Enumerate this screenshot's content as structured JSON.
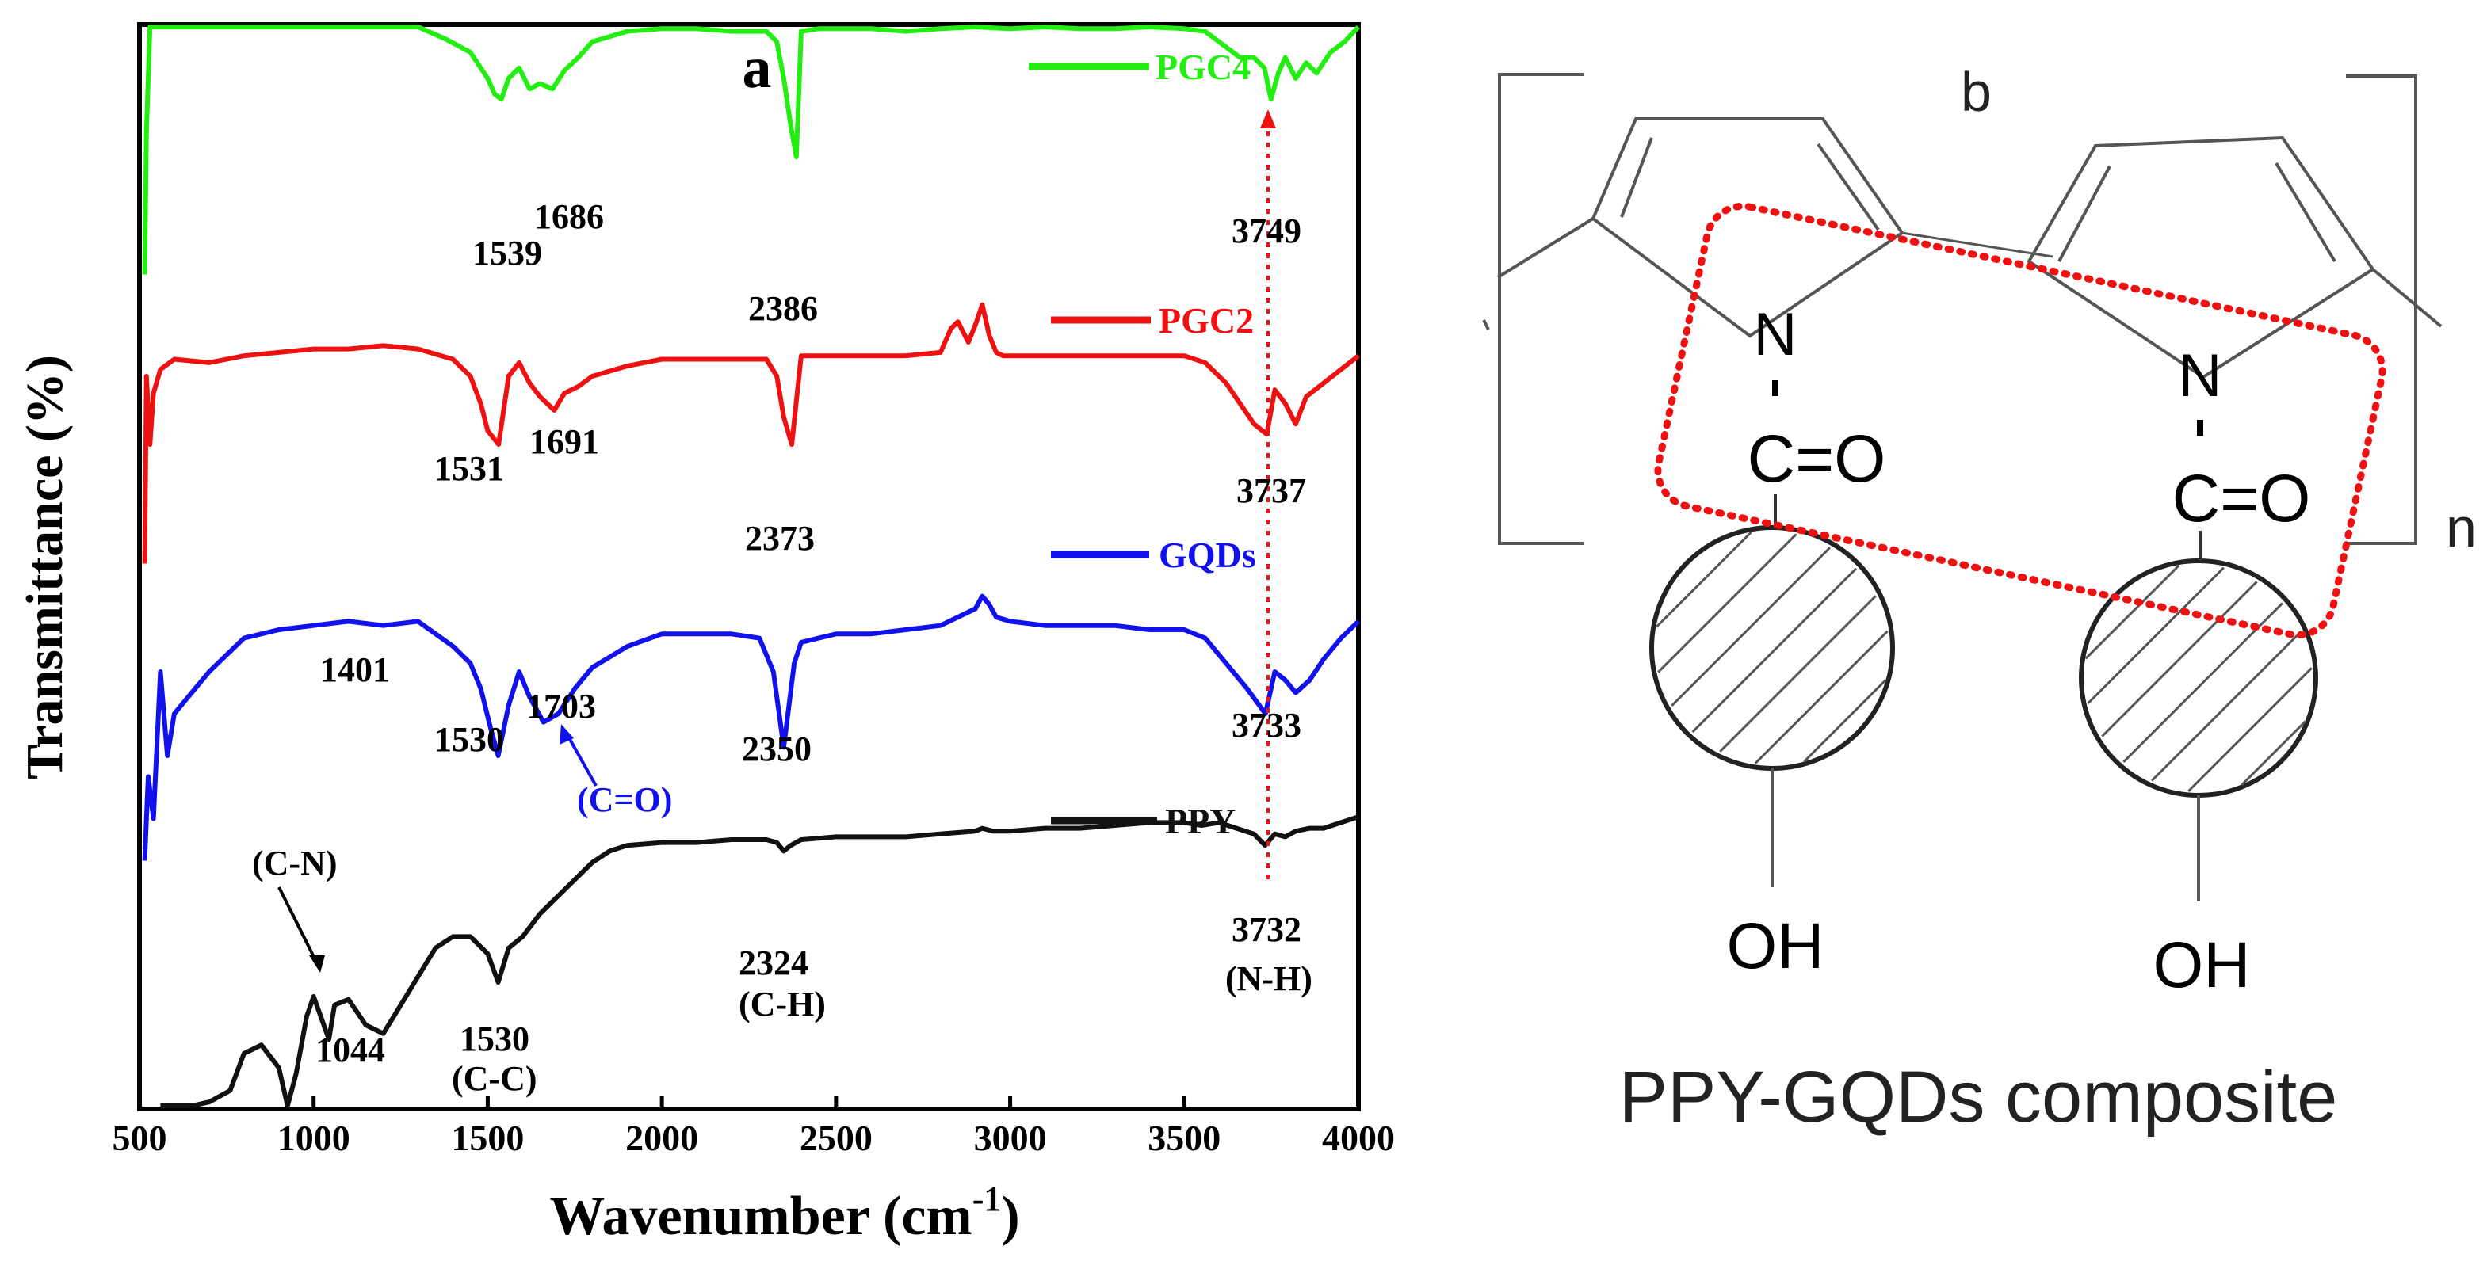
{
  "panel_a": {
    "label": "a",
    "chart_data": {
      "type": "line",
      "title": "",
      "xlabel": "Wavenumber (cm",
      "xlabel_sup": "-1",
      "xlabel_close": ")",
      "ylabel": "Transmittance (%)",
      "xlim": [
        500,
        4000
      ],
      "xticks": [
        500,
        1000,
        1500,
        2000,
        2500,
        3000,
        3500,
        4000
      ],
      "yticks_shown": false,
      "series": [
        {
          "name": "PGC4",
          "color": "#22ee11",
          "x": [
            515,
            520,
            530,
            540,
            560,
            600,
            650,
            700,
            800,
            900,
            1000,
            1100,
            1200,
            1300,
            1380,
            1450,
            1500,
            1520,
            1539,
            1560,
            1590,
            1620,
            1650,
            1686,
            1720,
            1760,
            1800,
            1900,
            2000,
            2100,
            2200,
            2300,
            2330,
            2350,
            2370,
            2386,
            2400,
            2450,
            2500,
            2600,
            2700,
            2800,
            2900,
            3000,
            3100,
            3200,
            3300,
            3400,
            3500,
            3560,
            3620,
            3660,
            3700,
            3730,
            3749,
            3770,
            3790,
            3820,
            3850,
            3880,
            3920,
            3960,
            4000
          ],
          "values": [
            -5,
            50,
            100,
            92,
            95,
            92,
            90,
            92,
            93,
            91,
            90,
            91,
            90,
            90,
            85,
            80,
            70,
            64,
            62,
            70,
            74,
            66,
            68,
            66,
            73,
            78,
            84,
            88,
            89,
            89,
            88,
            88,
            84,
            70,
            52,
            40,
            88,
            89,
            89,
            89,
            88,
            89,
            90,
            89,
            90,
            89,
            89,
            90,
            89,
            88,
            82,
            78,
            78,
            74,
            62,
            72,
            78,
            70,
            76,
            72,
            80,
            84,
            90
          ]
        },
        {
          "name": "PGC2",
          "color": "#ee1111",
          "x": [
            515,
            520,
            530,
            540,
            560,
            600,
            700,
            800,
            900,
            1000,
            1100,
            1200,
            1300,
            1400,
            1450,
            1480,
            1500,
            1531,
            1560,
            1590,
            1620,
            1650,
            1691,
            1720,
            1760,
            1800,
            1900,
            2000,
            2100,
            2200,
            2300,
            2330,
            2350,
            2373,
            2400,
            2450,
            2500,
            2600,
            2700,
            2800,
            2830,
            2850,
            2880,
            2900,
            2920,
            2940,
            2960,
            2980,
            3000,
            3100,
            3200,
            3300,
            3400,
            3500,
            3560,
            3620,
            3660,
            3700,
            3737,
            3760,
            3790,
            3820,
            3850,
            3900,
            3950,
            4000
          ],
          "values": [
            -5,
            50,
            30,
            45,
            52,
            55,
            54,
            56,
            57,
            58,
            58,
            59,
            58,
            55,
            50,
            42,
            34,
            30,
            50,
            54,
            48,
            44,
            40,
            45,
            47,
            50,
            53,
            55,
            55,
            55,
            55,
            50,
            38,
            30,
            56,
            56,
            56,
            56,
            56,
            57,
            64,
            66,
            60,
            65,
            71,
            62,
            57,
            56,
            56,
            56,
            56,
            56,
            56,
            56,
            54,
            48,
            42,
            36,
            33,
            46,
            42,
            36,
            44,
            48,
            52,
            56
          ]
        },
        {
          "name": "GQDs",
          "color": "#1111ee",
          "x": [
            515,
            525,
            540,
            560,
            580,
            600,
            650,
            700,
            800,
            900,
            1000,
            1100,
            1200,
            1300,
            1401,
            1450,
            1480,
            1510,
            1530,
            1560,
            1590,
            1620,
            1660,
            1703,
            1750,
            1800,
            1900,
            2000,
            2100,
            2200,
            2280,
            2320,
            2350,
            2380,
            2400,
            2450,
            2500,
            2600,
            2700,
            2800,
            2900,
            2920,
            2940,
            2960,
            3000,
            3100,
            3200,
            3300,
            3400,
            3500,
            3560,
            3620,
            3680,
            3733,
            3760,
            3790,
            3820,
            3860,
            3900,
            3950,
            4000
          ],
          "values": [
            -5,
            15,
            5,
            40,
            20,
            30,
            35,
            40,
            48,
            50,
            51,
            52,
            51,
            52,
            46,
            42,
            36,
            26,
            20,
            32,
            40,
            34,
            28,
            30,
            36,
            41,
            46,
            49,
            49,
            49,
            48,
            40,
            22,
            42,
            47,
            48,
            49,
            49,
            50,
            51,
            55,
            58,
            56,
            53,
            52,
            51,
            51,
            51,
            50,
            50,
            48,
            42,
            36,
            30,
            40,
            38,
            35,
            38,
            43,
            48,
            52
          ]
        },
        {
          "name": "PPY",
          "color": "#111111",
          "x": [
            560,
            600,
            650,
            700,
            760,
            800,
            850,
            900,
            925,
            950,
            980,
            1000,
            1044,
            1060,
            1100,
            1150,
            1200,
            1250,
            1300,
            1350,
            1400,
            1450,
            1500,
            1530,
            1560,
            1600,
            1650,
            1700,
            1750,
            1800,
            1850,
            1900,
            2000,
            2100,
            2200,
            2300,
            2330,
            2350,
            2370,
            2400,
            2500,
            2600,
            2700,
            2800,
            2900,
            2920,
            2950,
            3000,
            3100,
            3200,
            3300,
            3400,
            3500,
            3550,
            3600,
            3650,
            3700,
            3732,
            3760,
            3790,
            3820,
            3860,
            3900,
            3950,
            4000
          ],
          "values": [
            -50,
            -43,
            -40,
            -32,
            -28,
            -15,
            -12,
            -20,
            -34,
            -22,
            -2,
            5,
            -10,
            2,
            4,
            -5,
            -8,
            2,
            12,
            22,
            26,
            26,
            20,
            10,
            22,
            26,
            34,
            40,
            46,
            52,
            56,
            58,
            59,
            59,
            60,
            60,
            59,
            56,
            58,
            60,
            61,
            61,
            61,
            62,
            63,
            64,
            63,
            63,
            64,
            64,
            65,
            66,
            66,
            65,
            66,
            64,
            62,
            58,
            62,
            61,
            63,
            64,
            64,
            66,
            68
          ]
        }
      ],
      "annotations": {
        "PGC4": [
          "1539",
          "1686",
          "2386",
          "3749"
        ],
        "PGC2": [
          "1531",
          "1691",
          "2373",
          "3737"
        ],
        "GQDs": [
          "1401",
          "1530",
          "1703",
          "(C=O)",
          "2350",
          "3733"
        ],
        "PPY": [
          "(C-N)",
          "1044",
          "1530",
          "(C-C)",
          "2324",
          "(C-H)",
          "3732",
          "(N-H)"
        ]
      },
      "legend_placement": "stacked labels right of each curve"
    }
  },
  "panel_b": {
    "label": "b",
    "n_label": "n",
    "n1": "N",
    "n2": "N",
    "co1": "C=O",
    "co2": "C=O",
    "oh1": "OH",
    "oh2": "OH",
    "caption": "PPY-GQDs composite",
    "highlight_color": "#ee1111"
  }
}
